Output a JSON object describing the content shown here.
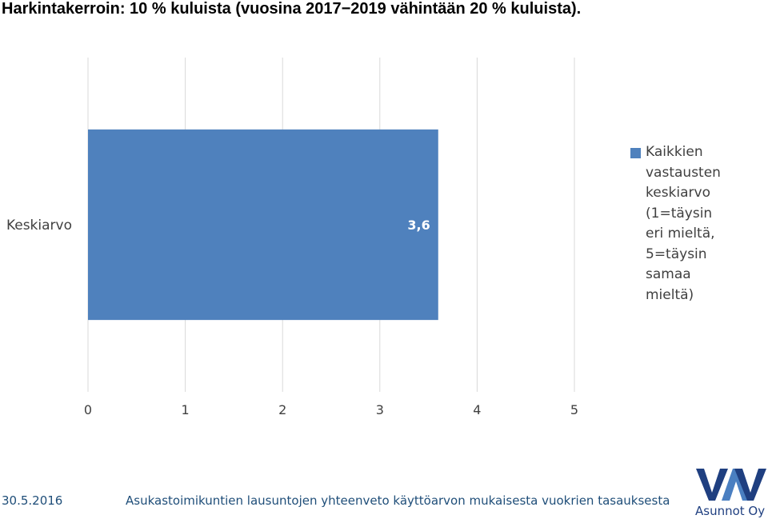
{
  "title": "Harkintakerroin: 10 % kuluista (vuosina 2017−2019 vähintään 20 % kuluista).",
  "chart_data": {
    "type": "bar",
    "orientation": "horizontal",
    "categories": [
      "Keskiarvo"
    ],
    "series": [
      {
        "name": "Kaikkien vastausten keskiarvo (1=täysin eri mieltä, 5=täysin samaa mieltä)",
        "values": [
          3.6
        ],
        "data_labels": [
          "3,6"
        ],
        "color": "#4f81bd"
      }
    ],
    "xlim": [
      0,
      5
    ],
    "x_ticks": [
      "0",
      "1",
      "2",
      "3",
      "4",
      "5"
    ],
    "grid": true,
    "legend": "right",
    "legend_lines": [
      "Kaikkien",
      "vastausten",
      "keskiarvo",
      "(1=täysin",
      "eri mieltä,",
      "5=täysin",
      "samaa",
      "mieltä)"
    ]
  },
  "footer": {
    "date": "30.5.2016",
    "text": "Asukastoimikuntien lausuntojen yhteenveto käyttöarvon mukaisesta vuokrien tasauksesta"
  },
  "logo": {
    "text": "VAV",
    "caption": "Asunnot Oy",
    "color": "#1f3f80",
    "accent": "#4a7fc1"
  }
}
